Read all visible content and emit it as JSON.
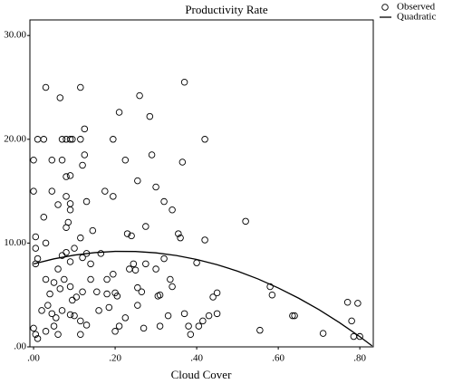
{
  "chart_data": {
    "type": "scatter",
    "title": "Productivity Rate",
    "x_label": "Cloud Cover",
    "xlim": [
      -0.009,
      0.833
    ],
    "ylim": [
      0,
      31.5
    ],
    "xticks": [
      {
        "value": 0,
        "label": ".00"
      },
      {
        "value": 0.2,
        "label": ".20"
      },
      {
        "value": 0.4,
        "label": ".40"
      },
      {
        "value": 0.6,
        "label": ".60"
      },
      {
        "value": 0.8,
        "label": ".80"
      }
    ],
    "yticks": [
      {
        "value": 0,
        "label": ".00"
      },
      {
        "value": 10,
        "label": "10.00"
      },
      {
        "value": 20,
        "label": "20.00"
      },
      {
        "value": 30,
        "label": "30.00"
      }
    ],
    "legend": "right",
    "grid": false,
    "series": [
      {
        "name": "Observed",
        "style": "markers",
        "color": "#000000",
        "x": [
          0.03,
          0.065,
          0.115,
          0.26,
          0.37,
          0.21,
          0.285,
          0.125,
          0.0,
          0.01,
          0.025,
          0.07,
          0.08,
          0.09,
          0.095,
          0.115,
          0.195,
          0.42,
          0.045,
          0.07,
          0.125,
          0.12,
          0.225,
          0.29,
          0.365,
          0.08,
          0.09,
          0.255,
          0.175,
          0.195,
          0.045,
          0.3,
          0.0,
          0.08,
          0.09,
          0.13,
          0.06,
          0.32,
          0.09,
          0.34,
          0.025,
          0.085,
          0.275,
          0.52,
          0.08,
          0.115,
          0.145,
          0.23,
          0.24,
          0.355,
          0.36,
          0.42,
          0.005,
          0.005,
          0.03,
          0.01,
          0.005,
          0.07,
          0.08,
          0.1,
          0.12,
          0.09,
          0.13,
          0.165,
          0.14,
          0.06,
          0.03,
          0.05,
          0.065,
          0.04,
          0.075,
          0.09,
          0.12,
          0.105,
          0.155,
          0.18,
          0.2,
          0.205,
          0.245,
          0.235,
          0.25,
          0.275,
          0.3,
          0.32,
          0.335,
          0.34,
          0.31,
          0.305,
          0.255,
          0.265,
          0.4,
          0.45,
          0.44,
          0.58,
          0.585,
          0.035,
          0.02,
          0.045,
          0.055,
          0.07,
          0.09,
          0.1,
          0.115,
          0.13,
          0.05,
          0.0,
          0.005,
          0.01,
          0.03,
          0.06,
          0.115,
          0.16,
          0.185,
          0.21,
          0.225,
          0.255,
          0.27,
          0.31,
          0.33,
          0.37,
          0.38,
          0.385,
          0.405,
          0.415,
          0.43,
          0.45,
          0.555,
          0.635,
          0.64,
          0.71,
          0.77,
          0.78,
          0.785,
          0.795,
          0.8,
          0.195,
          0.18,
          0.14,
          0.095,
          0.2
        ],
        "values": [
          25,
          24,
          25,
          24.2,
          25.5,
          22.6,
          22.2,
          21,
          18,
          20,
          20,
          20,
          20,
          20,
          20,
          20,
          20,
          20,
          18,
          18,
          18.5,
          17.5,
          18,
          18.5,
          17.8,
          16.4,
          16.5,
          16,
          15,
          14.5,
          15,
          15.4,
          15,
          14.5,
          13.8,
          14,
          13.7,
          14,
          13.2,
          13.2,
          12.5,
          12,
          11.6,
          12.1,
          11.5,
          10.5,
          11.2,
          10.9,
          10.7,
          10.9,
          10.5,
          10.3,
          10.6,
          9.5,
          10,
          8.5,
          8,
          8.8,
          9.1,
          9.5,
          8.6,
          8.2,
          9,
          9,
          8,
          7.5,
          6.5,
          6.2,
          5.6,
          5.1,
          6.5,
          5.8,
          5.3,
          4.8,
          5.3,
          5.1,
          5.2,
          4.9,
          8,
          7.5,
          7.4,
          8,
          7.5,
          8.5,
          6.5,
          5.8,
          5,
          4.9,
          5.7,
          5.3,
          8.1,
          5.2,
          4.8,
          5.8,
          5,
          4,
          3.5,
          3.2,
          2.8,
          3.5,
          3.1,
          3,
          2.5,
          2.1,
          2,
          1.8,
          1.2,
          0.8,
          1.5,
          1.2,
          1.2,
          3.5,
          3.8,
          2,
          2.8,
          4,
          1.8,
          2,
          3,
          3.2,
          2,
          1.2,
          2,
          2.5,
          3,
          3.2,
          1.6,
          3,
          3,
          1.3,
          4.3,
          2.5,
          1,
          4.2,
          1,
          7,
          6.5,
          6.5,
          4.5,
          1.5
        ]
      },
      {
        "name": "Quadratic",
        "style": "line",
        "color": "#000000",
        "x": [
          0,
          0.05,
          0.1,
          0.15,
          0.2,
          0.25,
          0.3,
          0.35,
          0.4,
          0.45,
          0.5,
          0.55,
          0.6,
          0.65,
          0.7,
          0.75,
          0.8,
          0.83
        ],
        "values": [
          8,
          8.48,
          8.84,
          9.08,
          9.2,
          9.19,
          9.06,
          8.8,
          8.42,
          7.92,
          7.3,
          6.55,
          5.68,
          4.69,
          3.58,
          2.34,
          0.98,
          0.1
        ]
      }
    ]
  }
}
